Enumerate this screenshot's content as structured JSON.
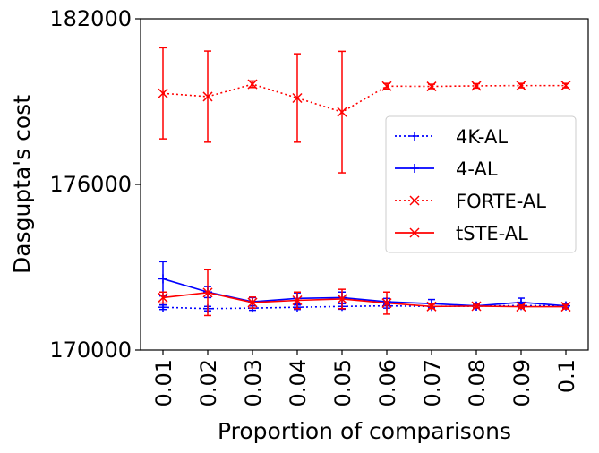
{
  "chart_data": {
    "type": "line",
    "xlabel": "Proportion of comparisons",
    "ylabel": "Dasgupta's cost",
    "x": [
      "0.01",
      "0.02",
      "0.03",
      "0.04",
      "0.05",
      "0.06",
      "0.07",
      "0.08",
      "0.09",
      "0.1"
    ],
    "ylim": [
      170000,
      182000
    ],
    "yticks": [
      "170000",
      "176000",
      "182000"
    ],
    "grid": false,
    "legend_position": "center-right",
    "series": [
      {
        "name": "4K-AL",
        "color": "#0000ff",
        "linestyle": "dotted",
        "marker": "plus",
        "values": [
          171550,
          171500,
          171520,
          171550,
          171580,
          171600,
          171580,
          171590,
          171610,
          171600
        ],
        "errors": [
          80,
          80,
          80,
          80,
          100,
          80,
          80,
          60,
          60,
          60
        ]
      },
      {
        "name": "4-AL",
        "color": "#0000ff",
        "linestyle": "solid",
        "marker": "plus",
        "values": [
          172580,
          172100,
          171750,
          171870,
          171900,
          171750,
          171680,
          171600,
          171730,
          171600
        ],
        "errors": [
          620,
          200,
          150,
          200,
          200,
          120,
          150,
          80,
          150,
          80
        ]
      },
      {
        "name": "FORTE-AL",
        "color": "#ff0000",
        "linestyle": "dotted",
        "marker": "x",
        "values": [
          179300,
          179180,
          179630,
          179130,
          178620,
          179560,
          179550,
          179570,
          179580,
          179580
        ],
        "errors": [
          1650,
          1650,
          120,
          1600,
          2200,
          100,
          80,
          80,
          80,
          80
        ]
      },
      {
        "name": "tSTE-AL",
        "color": "#ff0000",
        "linestyle": "solid",
        "marker": "x",
        "values": [
          171900,
          172080,
          171720,
          171800,
          171850,
          171700,
          171580,
          171590,
          171570,
          171570
        ],
        "errors": [
          200,
          830,
          200,
          300,
          350,
          400,
          80,
          60,
          60,
          80
        ]
      }
    ]
  }
}
